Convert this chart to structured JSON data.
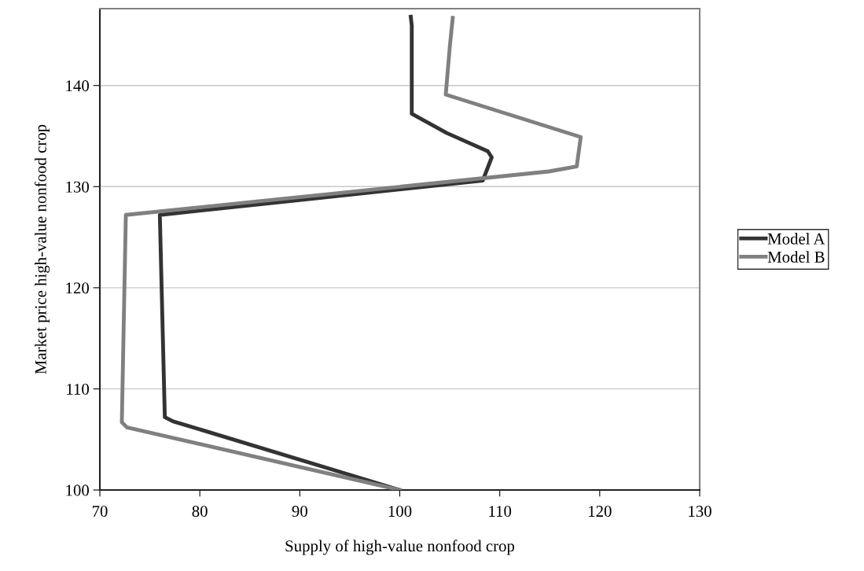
{
  "chart_data": {
    "type": "line",
    "xlabel": "Supply of high-value nonfood crop",
    "ylabel": "Market price high-value nonfood crop",
    "xlim": [
      70,
      130
    ],
    "ylim": [
      100,
      147.6
    ],
    "xticks": [
      70,
      80,
      90,
      100,
      110,
      120,
      130
    ],
    "yticks": [
      100,
      110,
      120,
      130,
      140
    ],
    "grid": "y",
    "legend": "right",
    "marker": "none",
    "line_style": "solid",
    "series": [
      {
        "name": "Model A",
        "color": "#333333",
        "x": [
          100,
          82.0,
          77.3,
          76.5,
          76.0,
          108.3,
          109.2,
          108.8,
          104.7,
          101.2,
          101.2,
          101.1
        ],
        "values": [
          100,
          105.4,
          106.8,
          107.2,
          127.2,
          130.6,
          132.9,
          133.5,
          135.3,
          137.2,
          145.9,
          146.8
        ]
      },
      {
        "name": "Model B",
        "color": "#808080",
        "x": [
          100,
          72.7,
          72.2,
          72.6,
          114.9,
          117.7,
          118.1,
          104.6,
          105.0,
          105.3
        ],
        "values": [
          100,
          106.2,
          106.7,
          127.2,
          131.5,
          132.0,
          134.9,
          139.1,
          143.8,
          146.7
        ]
      }
    ]
  }
}
